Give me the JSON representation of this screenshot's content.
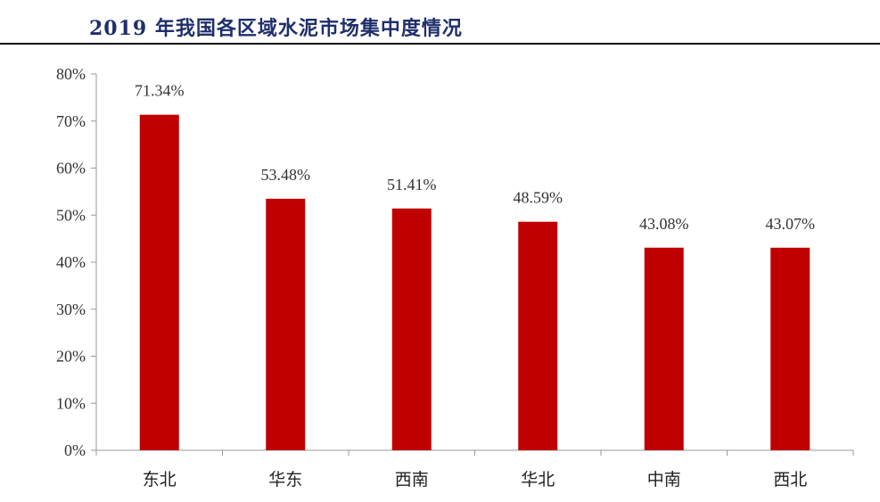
{
  "page": {
    "title": "2019 年我国各区域水泥市场集中度情况"
  },
  "chart_data": {
    "type": "bar",
    "title": "2019 年我国各区域水泥市场集中度情况",
    "categories": [
      "东北",
      "华东",
      "西南",
      "华北",
      "中南",
      "西北"
    ],
    "values": [
      71.34,
      53.48,
      51.41,
      48.59,
      43.08,
      43.07
    ],
    "data_labels": [
      "71.34%",
      "53.48%",
      "51.41%",
      "48.59%",
      "43.08%",
      "43.07%"
    ],
    "yticks": [
      "0%",
      "10%",
      "20%",
      "30%",
      "40%",
      "50%",
      "60%",
      "70%",
      "80%"
    ],
    "ylim": [
      0,
      80
    ],
    "xlabel": "",
    "ylabel": "",
    "grid": false,
    "bar_color": "#c00000"
  }
}
